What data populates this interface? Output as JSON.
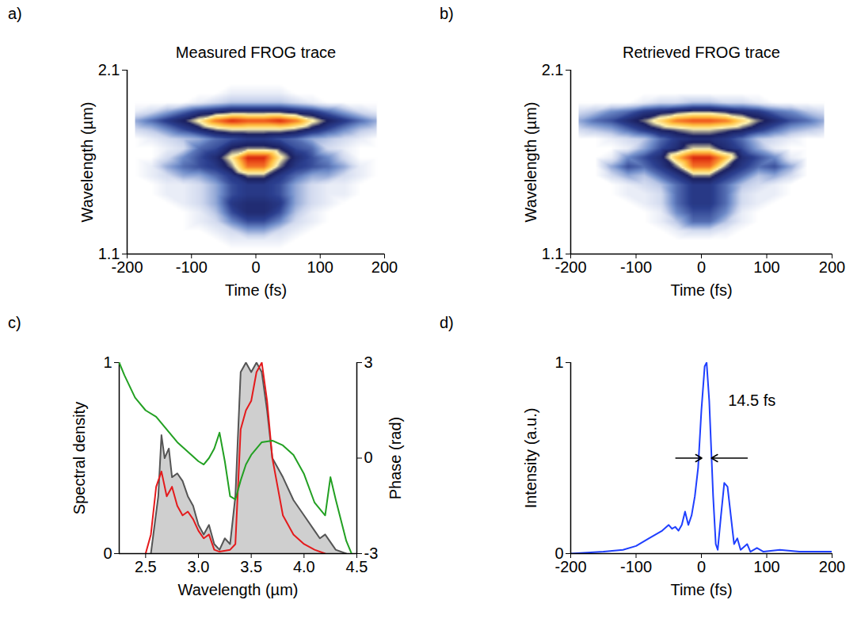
{
  "chart_data": [
    {
      "type": "heatmap",
      "panel_label": "a)",
      "title": "Measured FROG trace",
      "x_label": "Time (fs)",
      "y_label": "Wavelength (µm)",
      "xlim": [
        -200,
        200
      ],
      "xticks": [
        -200,
        -100,
        0,
        100,
        200
      ],
      "ylim": [
        1.1,
        2.1
      ],
      "yticks": [
        1.1,
        2.1
      ],
      "color_range": [
        0,
        1
      ],
      "x": [
        -187.5,
        -162.5,
        -137.5,
        -112.5,
        -87.5,
        -62.5,
        -37.5,
        -12.5,
        12.5,
        37.5,
        62.5,
        87.5,
        112.5,
        137.5,
        162.5,
        187.5
      ],
      "y": [
        2.075,
        2.025,
        1.975,
        1.925,
        1.875,
        1.825,
        1.775,
        1.725,
        1.675,
        1.625,
        1.575,
        1.525,
        1.475,
        1.425,
        1.375,
        1.325,
        1.275,
        1.225,
        1.175,
        1.125
      ],
      "cells": [
        [
          0,
          0,
          0,
          0,
          0,
          0,
          0,
          0,
          0,
          0,
          0,
          0,
          0,
          0,
          0,
          0
        ],
        [
          0,
          0,
          0,
          0,
          0,
          0,
          0,
          0,
          0,
          0,
          0,
          0,
          0,
          0,
          0,
          0
        ],
        [
          0,
          0,
          0,
          0,
          0,
          0,
          0.05,
          0.05,
          0.05,
          0.05,
          0,
          0,
          0,
          0,
          0,
          0
        ],
        [
          0,
          0,
          0,
          0,
          0.05,
          0.1,
          0.15,
          0.15,
          0.15,
          0.15,
          0.1,
          0.05,
          0,
          0,
          0,
          0
        ],
        [
          0.05,
          0.1,
          0.2,
          0.3,
          0.4,
          0.45,
          0.5,
          0.5,
          0.5,
          0.5,
          0.45,
          0.4,
          0.3,
          0.2,
          0.1,
          0.05
        ],
        [
          0.2,
          0.3,
          0.4,
          0.5,
          0.65,
          0.85,
          0.95,
          0.9,
          0.9,
          0.95,
          0.85,
          0.65,
          0.5,
          0.4,
          0.3,
          0.2
        ],
        [
          0.1,
          0.15,
          0.25,
          0.35,
          0.45,
          0.55,
          0.6,
          0.6,
          0.6,
          0.6,
          0.55,
          0.45,
          0.35,
          0.25,
          0.15,
          0.1
        ],
        [
          0,
          0.05,
          0.1,
          0.15,
          0.2,
          0.3,
          0.35,
          0.4,
          0.4,
          0.35,
          0.3,
          0.2,
          0.15,
          0.1,
          0.05,
          0
        ],
        [
          0,
          0,
          0.05,
          0.1,
          0.3,
          0.35,
          0.5,
          0.55,
          0.55,
          0.5,
          0.35,
          0.3,
          0.1,
          0.05,
          0,
          0
        ],
        [
          0,
          0,
          0.1,
          0.25,
          0.35,
          0.45,
          0.65,
          0.95,
          0.95,
          0.65,
          0.45,
          0.35,
          0.25,
          0.1,
          0,
          0
        ],
        [
          0,
          0.05,
          0.2,
          0.3,
          0.35,
          0.4,
          0.55,
          0.85,
          0.85,
          0.55,
          0.4,
          0.35,
          0.3,
          0.2,
          0.05,
          0
        ],
        [
          0,
          0.05,
          0.1,
          0.2,
          0.2,
          0.3,
          0.4,
          0.55,
          0.55,
          0.4,
          0.3,
          0.2,
          0.2,
          0.1,
          0.05,
          0
        ],
        [
          0,
          0,
          0.05,
          0.05,
          0.1,
          0.2,
          0.35,
          0.4,
          0.4,
          0.35,
          0.2,
          0.1,
          0.05,
          0.05,
          0,
          0
        ],
        [
          0,
          0,
          0.05,
          0.05,
          0.1,
          0.2,
          0.35,
          0.4,
          0.4,
          0.35,
          0.2,
          0.1,
          0.05,
          0.05,
          0,
          0
        ],
        [
          0,
          0,
          0,
          0.05,
          0.1,
          0.2,
          0.4,
          0.45,
          0.45,
          0.4,
          0.2,
          0.1,
          0.05,
          0,
          0,
          0
        ],
        [
          0,
          0,
          0,
          0,
          0.05,
          0.15,
          0.35,
          0.45,
          0.45,
          0.35,
          0.15,
          0.05,
          0,
          0,
          0,
          0
        ],
        [
          0,
          0,
          0,
          0,
          0.05,
          0.1,
          0.25,
          0.35,
          0.35,
          0.25,
          0.1,
          0.05,
          0,
          0,
          0,
          0
        ],
        [
          0,
          0,
          0,
          0,
          0,
          0.05,
          0.1,
          0.2,
          0.2,
          0.1,
          0.05,
          0,
          0,
          0,
          0,
          0
        ],
        [
          0,
          0,
          0,
          0,
          0,
          0,
          0.05,
          0.05,
          0.05,
          0.05,
          0,
          0,
          0,
          0,
          0,
          0
        ],
        [
          0,
          0,
          0,
          0,
          0,
          0,
          0,
          0,
          0,
          0,
          0,
          0,
          0,
          0,
          0,
          0
        ]
      ]
    },
    {
      "type": "heatmap",
      "panel_label": "b)",
      "title": "Retrieved FROG trace",
      "x_label": "Time (fs)",
      "y_label": "Wavelength (µm)",
      "xlim": [
        -200,
        200
      ],
      "xticks": [
        -200,
        -100,
        0,
        100,
        200
      ],
      "ylim": [
        1.1,
        2.1
      ],
      "yticks": [
        1.1,
        2.1
      ],
      "color_range": [
        0,
        1
      ],
      "x": [
        -187.5,
        -162.5,
        -137.5,
        -112.5,
        -87.5,
        -62.5,
        -37.5,
        -12.5,
        12.5,
        37.5,
        62.5,
        87.5,
        112.5,
        137.5,
        162.5,
        187.5
      ],
      "y": [
        2.075,
        2.025,
        1.975,
        1.925,
        1.875,
        1.825,
        1.775,
        1.725,
        1.675,
        1.625,
        1.575,
        1.525,
        1.475,
        1.425,
        1.375,
        1.325,
        1.275,
        1.225,
        1.175,
        1.125
      ],
      "cells": [
        [
          0,
          0,
          0,
          0,
          0,
          0,
          0,
          0,
          0,
          0,
          0,
          0,
          0,
          0,
          0,
          0
        ],
        [
          0,
          0,
          0,
          0,
          0,
          0,
          0,
          0,
          0,
          0,
          0,
          0,
          0,
          0,
          0,
          0
        ],
        [
          0,
          0,
          0,
          0,
          0,
          0,
          0,
          0,
          0,
          0,
          0,
          0,
          0,
          0,
          0,
          0
        ],
        [
          0,
          0,
          0,
          0,
          0.05,
          0.1,
          0.1,
          0.15,
          0.15,
          0.1,
          0.1,
          0.05,
          0,
          0,
          0,
          0
        ],
        [
          0.1,
          0.15,
          0.25,
          0.3,
          0.4,
          0.45,
          0.5,
          0.55,
          0.55,
          0.5,
          0.45,
          0.4,
          0.3,
          0.25,
          0.15,
          0.1
        ],
        [
          0.2,
          0.3,
          0.35,
          0.45,
          0.55,
          0.7,
          0.85,
          0.9,
          0.9,
          0.85,
          0.7,
          0.55,
          0.45,
          0.35,
          0.3,
          0.2
        ],
        [
          0.1,
          0.15,
          0.2,
          0.3,
          0.4,
          0.5,
          0.55,
          0.6,
          0.6,
          0.55,
          0.5,
          0.4,
          0.3,
          0.2,
          0.15,
          0.1
        ],
        [
          0,
          0,
          0.05,
          0.1,
          0.15,
          0.3,
          0.4,
          0.45,
          0.45,
          0.4,
          0.3,
          0.15,
          0.1,
          0.05,
          0,
          0
        ],
        [
          0,
          0,
          0,
          0.05,
          0.2,
          0.35,
          0.45,
          0.6,
          0.6,
          0.45,
          0.35,
          0.2,
          0.05,
          0,
          0,
          0
        ],
        [
          0,
          0,
          0.05,
          0.25,
          0.35,
          0.45,
          0.75,
          0.95,
          0.95,
          0.75,
          0.45,
          0.35,
          0.25,
          0.05,
          0,
          0
        ],
        [
          0,
          0,
          0.2,
          0.35,
          0.3,
          0.4,
          0.55,
          0.85,
          0.85,
          0.55,
          0.4,
          0.3,
          0.35,
          0.2,
          0,
          0
        ],
        [
          0,
          0,
          0.1,
          0.2,
          0.15,
          0.3,
          0.4,
          0.55,
          0.55,
          0.4,
          0.3,
          0.15,
          0.2,
          0.1,
          0,
          0
        ],
        [
          0,
          0,
          0,
          0.05,
          0.1,
          0.15,
          0.3,
          0.4,
          0.4,
          0.3,
          0.15,
          0.1,
          0.05,
          0,
          0,
          0
        ],
        [
          0,
          0,
          0,
          0.05,
          0.05,
          0.1,
          0.3,
          0.4,
          0.4,
          0.3,
          0.1,
          0.05,
          0.05,
          0,
          0,
          0
        ],
        [
          0,
          0,
          0,
          0,
          0.05,
          0.1,
          0.3,
          0.4,
          0.4,
          0.3,
          0.1,
          0.05,
          0,
          0,
          0,
          0
        ],
        [
          0,
          0,
          0,
          0,
          0,
          0.05,
          0.25,
          0.35,
          0.35,
          0.25,
          0.05,
          0,
          0,
          0,
          0,
          0
        ],
        [
          0,
          0,
          0,
          0,
          0,
          0.05,
          0.15,
          0.3,
          0.3,
          0.15,
          0.05,
          0,
          0,
          0,
          0,
          0
        ],
        [
          0,
          0,
          0,
          0,
          0,
          0,
          0.05,
          0.1,
          0.1,
          0.05,
          0,
          0,
          0,
          0,
          0,
          0
        ],
        [
          0,
          0,
          0,
          0,
          0,
          0,
          0,
          0,
          0,
          0,
          0,
          0,
          0,
          0,
          0,
          0
        ],
        [
          0,
          0,
          0,
          0,
          0,
          0,
          0,
          0,
          0,
          0,
          0,
          0,
          0,
          0,
          0,
          0
        ]
      ]
    },
    {
      "type": "line",
      "panel_label": "c)",
      "x_label": "Wavelength (µm)",
      "y_label": "Spectral density",
      "y2_label": "Phase (rad)",
      "xlim": [
        2.25,
        4.5
      ],
      "xticks": [
        2.5,
        {
          "value": 3,
          "label": "3.0"
        },
        3.5,
        {
          "value": 4,
          "label": "4.0"
        },
        4.5
      ],
      "ylim": [
        0,
        1
      ],
      "yticks": [
        0,
        1
      ],
      "y2lim": [
        -3,
        3
      ],
      "y2ticks": [
        -3,
        0,
        3
      ],
      "series": [
        {
          "type": "area",
          "color": "#cfcfcf",
          "x": [
            2.55,
            2.62,
            2.65,
            2.68,
            2.72,
            2.75,
            2.8,
            2.85,
            2.9,
            2.95,
            3.0,
            3.05,
            3.1,
            3.15,
            3.2,
            3.25,
            3.3,
            3.35,
            3.4,
            3.45,
            3.5,
            3.55,
            3.6,
            3.65,
            3.7,
            3.8,
            3.9,
            4.0,
            4.1,
            4.15,
            4.2,
            4.3,
            4.4
          ],
          "values": [
            0,
            0.3,
            0.62,
            0.5,
            0.55,
            0.4,
            0.42,
            0.38,
            0.3,
            0.25,
            0.15,
            0.1,
            0.15,
            0.05,
            0.02,
            0.08,
            0.05,
            0.3,
            0.95,
            1.0,
            0.95,
            1.0,
            0.95,
            0.75,
            0.5,
            0.4,
            0.28,
            0.2,
            0.12,
            0.08,
            0.1,
            0.02,
            0
          ]
        },
        {
          "type": "line",
          "color": "#e41a1c",
          "x": [
            2.5,
            2.55,
            2.6,
            2.65,
            2.7,
            2.75,
            2.8,
            2.85,
            2.9,
            2.95,
            3.0,
            3.05,
            3.1,
            3.15,
            3.2,
            3.3,
            3.35,
            3.4,
            3.45,
            3.5,
            3.55,
            3.6,
            3.65,
            3.7,
            3.75,
            3.8,
            3.9,
            4.0,
            4.1,
            4.2
          ],
          "values": [
            0,
            0.1,
            0.35,
            0.43,
            0.3,
            0.35,
            0.25,
            0.2,
            0.22,
            0.18,
            0.12,
            0.08,
            0.1,
            0.02,
            0.01,
            0.02,
            0.05,
            0.65,
            0.75,
            0.8,
            0.95,
            1.0,
            0.8,
            0.5,
            0.35,
            0.2,
            0.1,
            0.05,
            0.02,
            0
          ]
        },
        {
          "type": "line",
          "color": "#22a022",
          "axis": "y2",
          "x": [
            2.25,
            2.3,
            2.4,
            2.5,
            2.6,
            2.7,
            2.8,
            2.9,
            3.0,
            3.05,
            3.1,
            3.15,
            3.2,
            3.25,
            3.3,
            3.35,
            3.4,
            3.45,
            3.5,
            3.6,
            3.7,
            3.8,
            3.9,
            4.0,
            4.1,
            4.2,
            4.25,
            4.3,
            4.4,
            4.45
          ],
          "values": [
            3,
            2.6,
            1.9,
            1.5,
            1.3,
            0.9,
            0.5,
            0.2,
            -0.1,
            -0.2,
            0,
            0.3,
            0.8,
            -0.1,
            -1.2,
            -1.3,
            -0.7,
            -0.2,
            0.1,
            0.5,
            0.55,
            0.4,
            0.1,
            -0.5,
            -1.4,
            -1.8,
            -0.6,
            -1.3,
            -2.6,
            -3
          ]
        }
      ]
    },
    {
      "type": "line",
      "panel_label": "d)",
      "x_label": "Time (fs)",
      "y_label": "Intensity (a.u.)",
      "xlim": [
        -200,
        200
      ],
      "xticks": [
        -200,
        -100,
        0,
        100,
        200
      ],
      "ylim": [
        0,
        1
      ],
      "yticks": [
        0,
        1
      ],
      "color": "#1f3fff",
      "x": [
        -200,
        -150,
        -120,
        -100,
        -80,
        -60,
        -50,
        -45,
        -40,
        -35,
        -30,
        -25,
        -20,
        -15,
        -10,
        -5,
        0,
        5,
        8,
        12,
        18,
        22,
        25,
        30,
        35,
        40,
        45,
        50,
        55,
        60,
        70,
        75,
        85,
        95,
        120,
        150,
        200
      ],
      "values": [
        0,
        0.01,
        0.02,
        0.04,
        0.08,
        0.12,
        0.15,
        0.13,
        0.14,
        0.12,
        0.15,
        0.22,
        0.15,
        0.2,
        0.3,
        0.45,
        0.75,
        0.98,
        1.0,
        0.8,
        0.3,
        0.05,
        0.02,
        0.2,
        0.37,
        0.35,
        0.2,
        0.05,
        0.08,
        0.02,
        0.05,
        0.01,
        0.03,
        0.01,
        0.02,
        0.01,
        0.01
      ],
      "annotation": {
        "text": "14.5 fs",
        "value": 14.5
      }
    }
  ]
}
